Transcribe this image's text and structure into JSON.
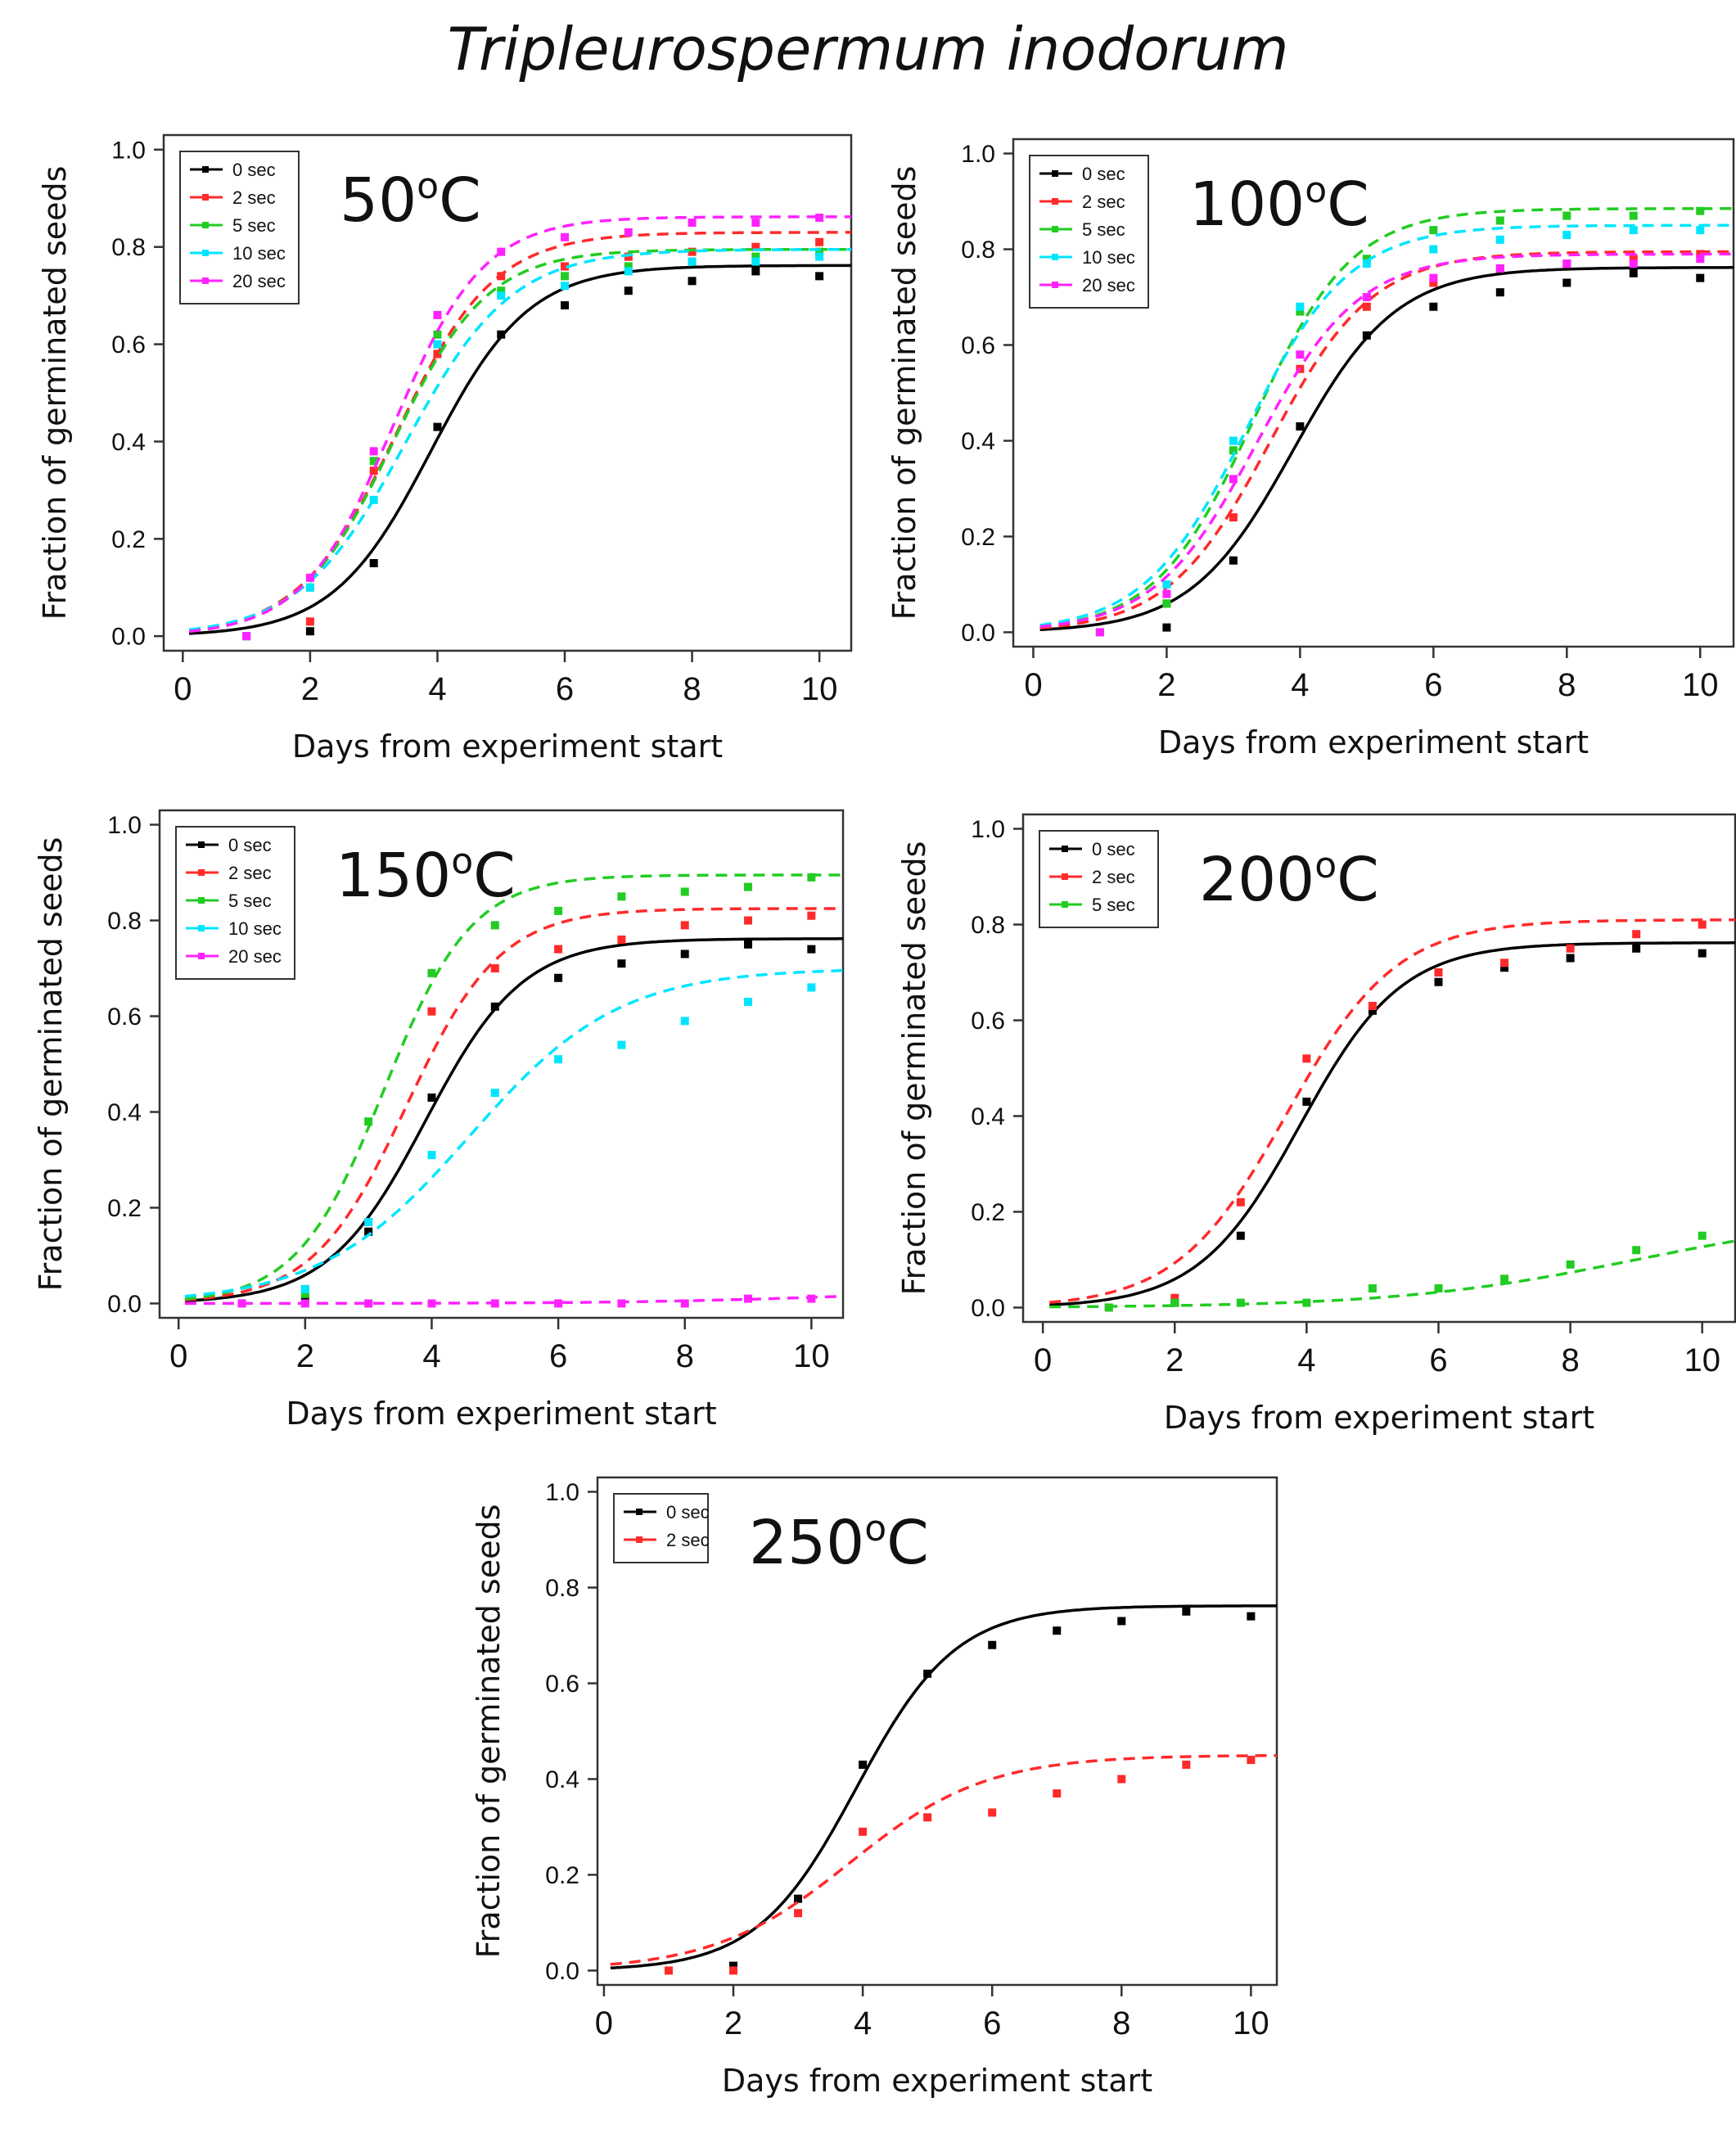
{
  "figure_title": "Tripleurospermum inodorum",
  "colors": {
    "0 sec": "#000000",
    "2 sec": "#ff2a2a",
    "5 sec": "#22cc22",
    "10 sec": "#00e5ff",
    "20 sec": "#ff22ff"
  },
  "chart_data": [
    {
      "type": "line",
      "temperature": "50",
      "unit": "oC",
      "xlabel": "Days from experiment start",
      "ylabel": "Fraction of germinated seeds",
      "xlim": [
        -0.3,
        10.5
      ],
      "ylim": [
        -0.03,
        1.03
      ],
      "xticks": [
        "0",
        "2",
        "4",
        "6",
        "8",
        "10"
      ],
      "yticks": [
        "0.0",
        "0.2",
        "0.4",
        "0.6",
        "0.8",
        "1.0"
      ],
      "legend": [
        "0 sec",
        "2 sec",
        "5 sec",
        "10 sec",
        "20 sec"
      ],
      "series": [
        {
          "name": "0 sec",
          "line": "solid",
          "fit": {
            "A": 0.762,
            "k": 1.3,
            "x0": 3.9
          },
          "x": [
            2,
            3,
            4,
            5,
            6,
            7,
            8,
            9,
            10
          ],
          "y": [
            0.01,
            0.15,
            0.43,
            0.62,
            0.68,
            0.71,
            0.73,
            0.75,
            0.74
          ]
        },
        {
          "name": "2 sec",
          "line": "dashed",
          "fit": {
            "A": 0.83,
            "k": 1.3,
            "x0": 3.35
          },
          "x": [
            1,
            2,
            3,
            4,
            5,
            6,
            7,
            8,
            9,
            10
          ],
          "y": [
            0.0,
            0.03,
            0.34,
            0.58,
            0.74,
            0.76,
            0.78,
            0.79,
            0.8,
            0.81
          ]
        },
        {
          "name": "5 sec",
          "line": "dashed",
          "fit": {
            "A": 0.795,
            "k": 1.35,
            "x0": 3.3
          },
          "x": [
            1,
            2,
            3,
            4,
            5,
            6,
            7,
            8,
            9,
            10
          ],
          "y": [
            0.0,
            0.1,
            0.36,
            0.62,
            0.71,
            0.74,
            0.76,
            0.77,
            0.78,
            0.79
          ]
        },
        {
          "name": "10 sec",
          "line": "dashed",
          "fit": {
            "A": 0.795,
            "k": 1.2,
            "x0": 3.5
          },
          "x": [
            1,
            2,
            3,
            4,
            5,
            6,
            7,
            8,
            9,
            10
          ],
          "y": [
            0.0,
            0.1,
            0.28,
            0.6,
            0.7,
            0.72,
            0.75,
            0.77,
            0.77,
            0.78
          ]
        },
        {
          "name": "20 sec",
          "line": "dashed",
          "fit": {
            "A": 0.862,
            "k": 1.4,
            "x0": 3.3
          },
          "x": [
            1,
            2,
            3,
            4,
            5,
            6,
            7,
            8,
            9,
            10
          ],
          "y": [
            0.0,
            0.12,
            0.38,
            0.66,
            0.79,
            0.82,
            0.83,
            0.85,
            0.85,
            0.86
          ]
        }
      ]
    },
    {
      "type": "line",
      "temperature": "100",
      "unit": "oC",
      "xlabel": "Days from experiment start",
      "ylabel": "Fraction of germinated seeds",
      "xlim": [
        -0.3,
        10.5
      ],
      "ylim": [
        -0.03,
        1.03
      ],
      "xticks": [
        "0",
        "2",
        "4",
        "6",
        "8",
        "10"
      ],
      "yticks": [
        "0.0",
        "0.2",
        "0.4",
        "0.6",
        "0.8",
        "1.0"
      ],
      "legend": [
        "0 sec",
        "2 sec",
        "5 sec",
        "10 sec",
        "20 sec"
      ],
      "series": [
        {
          "name": "0 sec",
          "line": "solid",
          "fit": {
            "A": 0.762,
            "k": 1.3,
            "x0": 3.9
          },
          "x": [
            2,
            3,
            4,
            5,
            6,
            7,
            8,
            9,
            10
          ],
          "y": [
            0.01,
            0.15,
            0.43,
            0.62,
            0.68,
            0.71,
            0.73,
            0.75,
            0.74
          ]
        },
        {
          "name": "2 sec",
          "line": "dashed",
          "fit": {
            "A": 0.795,
            "k": 1.3,
            "x0": 3.55
          },
          "x": [
            1,
            2,
            3,
            4,
            5,
            6,
            7,
            8,
            9,
            10
          ],
          "y": [
            0.0,
            0.06,
            0.24,
            0.55,
            0.68,
            0.73,
            0.76,
            0.77,
            0.78,
            0.79
          ]
        },
        {
          "name": "5 sec",
          "line": "dashed",
          "fit": {
            "A": 0.885,
            "k": 1.35,
            "x0": 3.3
          },
          "x": [
            1,
            2,
            3,
            4,
            5,
            6,
            7,
            8,
            9,
            10
          ],
          "y": [
            0.0,
            0.06,
            0.38,
            0.67,
            0.78,
            0.84,
            0.86,
            0.87,
            0.87,
            0.88
          ]
        },
        {
          "name": "10 sec",
          "line": "dashed",
          "fit": {
            "A": 0.85,
            "k": 1.3,
            "x0": 3.2
          },
          "x": [
            1,
            2,
            3,
            4,
            5,
            6,
            7,
            8,
            9,
            10
          ],
          "y": [
            0.0,
            0.1,
            0.4,
            0.68,
            0.77,
            0.8,
            0.82,
            0.83,
            0.84,
            0.84
          ]
        },
        {
          "name": "20 sec",
          "line": "dashed",
          "fit": {
            "A": 0.79,
            "k": 1.3,
            "x0": 3.35
          },
          "x": [
            1,
            2,
            3,
            4,
            5,
            6,
            7,
            8,
            9,
            10
          ],
          "y": [
            0.0,
            0.08,
            0.32,
            0.58,
            0.7,
            0.74,
            0.76,
            0.77,
            0.77,
            0.78
          ]
        }
      ]
    },
    {
      "type": "line",
      "temperature": "150",
      "unit": "oC",
      "xlabel": "Days from experiment start",
      "ylabel": "Fraction of germinated seeds",
      "xlim": [
        -0.3,
        10.5
      ],
      "ylim": [
        -0.03,
        1.03
      ],
      "xticks": [
        "0",
        "2",
        "4",
        "6",
        "8",
        "10"
      ],
      "yticks": [
        "0.0",
        "0.2",
        "0.4",
        "0.6",
        "0.8",
        "1.0"
      ],
      "legend": [
        "0 sec",
        "2 sec",
        "5 sec",
        "10 sec",
        "20 sec"
      ],
      "series": [
        {
          "name": "0 sec",
          "line": "solid",
          "fit": {
            "A": 0.762,
            "k": 1.3,
            "x0": 3.9
          },
          "x": [
            2,
            3,
            4,
            5,
            6,
            7,
            8,
            9,
            10
          ],
          "y": [
            0.01,
            0.15,
            0.43,
            0.62,
            0.68,
            0.71,
            0.73,
            0.75,
            0.74
          ]
        },
        {
          "name": "2 sec",
          "line": "dashed",
          "fit": {
            "A": 0.825,
            "k": 1.35,
            "x0": 3.6
          },
          "x": [
            1,
            2,
            3,
            4,
            5,
            6,
            7,
            8,
            9,
            10
          ],
          "y": [
            0.0,
            0.03,
            0.17,
            0.61,
            0.7,
            0.74,
            0.76,
            0.79,
            0.8,
            0.81
          ]
        },
        {
          "name": "5 sec",
          "line": "dashed",
          "fit": {
            "A": 0.895,
            "k": 1.45,
            "x0": 3.25
          },
          "x": [
            1,
            2,
            3,
            4,
            5,
            6,
            7,
            8,
            9,
            10
          ],
          "y": [
            0.0,
            0.02,
            0.38,
            0.69,
            0.79,
            0.82,
            0.85,
            0.86,
            0.87,
            0.89
          ]
        },
        {
          "name": "10 sec",
          "line": "dashed",
          "fit": {
            "A": 0.7,
            "k": 0.85,
            "x0": 4.6
          },
          "x": [
            1,
            2,
            3,
            4,
            5,
            6,
            7,
            8,
            9,
            10
          ],
          "y": [
            0.0,
            0.03,
            0.17,
            0.31,
            0.44,
            0.51,
            0.54,
            0.59,
            0.63,
            0.66
          ]
        },
        {
          "name": "20 sec",
          "line": "dashed",
          "fit": {
            "A": 0.03,
            "k": 0.6,
            "x0": 10.5
          },
          "x": [
            1,
            2,
            3,
            4,
            5,
            6,
            7,
            8,
            9,
            10
          ],
          "y": [
            0.0,
            0.0,
            0.0,
            0.0,
            0.0,
            0.0,
            0.0,
            0.0,
            0.01,
            0.01
          ]
        }
      ]
    },
    {
      "type": "line",
      "temperature": "200",
      "unit": "oC",
      "xlabel": "Days from experiment start",
      "ylabel": "Fraction of germinated seeds",
      "xlim": [
        -0.3,
        10.5
      ],
      "ylim": [
        -0.03,
        1.03
      ],
      "xticks": [
        "0",
        "2",
        "4",
        "6",
        "8",
        "10"
      ],
      "yticks": [
        "0.0",
        "0.2",
        "0.4",
        "0.6",
        "0.8",
        "1.0"
      ],
      "legend": [
        "0 sec",
        "2 sec",
        "5 sec"
      ],
      "series": [
        {
          "name": "0 sec",
          "line": "solid",
          "fit": {
            "A": 0.762,
            "k": 1.3,
            "x0": 3.9
          },
          "x": [
            2,
            3,
            4,
            5,
            6,
            7,
            8,
            9,
            10
          ],
          "y": [
            0.01,
            0.15,
            0.43,
            0.62,
            0.68,
            0.71,
            0.73,
            0.75,
            0.74
          ]
        },
        {
          "name": "2 sec",
          "line": "dashed",
          "fit": {
            "A": 0.81,
            "k": 1.2,
            "x0": 3.7
          },
          "x": [
            1,
            2,
            3,
            4,
            5,
            6,
            7,
            8,
            9,
            10
          ],
          "y": [
            0.0,
            0.02,
            0.22,
            0.52,
            0.63,
            0.7,
            0.72,
            0.75,
            0.78,
            0.8
          ]
        },
        {
          "name": "5 sec",
          "line": "dashed",
          "fit": {
            "A": 0.2,
            "k": 0.55,
            "x0": 9.0
          },
          "x": [
            1,
            2,
            3,
            4,
            5,
            6,
            7,
            8,
            9,
            10
          ],
          "y": [
            0.0,
            0.01,
            0.01,
            0.01,
            0.04,
            0.04,
            0.06,
            0.09,
            0.12,
            0.15
          ]
        }
      ]
    },
    {
      "type": "line",
      "temperature": "250",
      "unit": "oC",
      "xlabel": "Days from experiment start",
      "ylabel": "Fraction of germinated seeds",
      "xlim": [
        -0.1,
        10.4
      ],
      "ylim": [
        -0.03,
        1.03
      ],
      "xticks": [
        "0",
        "2",
        "4",
        "6",
        "8",
        "10"
      ],
      "yticks": [
        "0.0",
        "0.2",
        "0.4",
        "0.6",
        "0.8",
        "1.0"
      ],
      "legend": [
        "0 sec",
        "2 sec"
      ],
      "series": [
        {
          "name": "0 sec",
          "line": "solid",
          "fit": {
            "A": 0.762,
            "k": 1.3,
            "x0": 3.9
          },
          "x": [
            2,
            3,
            4,
            5,
            6,
            7,
            8,
            9,
            10
          ],
          "y": [
            0.01,
            0.15,
            0.43,
            0.62,
            0.68,
            0.71,
            0.73,
            0.75,
            0.74
          ]
        },
        {
          "name": "2 sec",
          "line": "dashed",
          "fit": {
            "A": 0.45,
            "k": 0.95,
            "x0": 3.8
          },
          "x": [
            1,
            2,
            3,
            4,
            5,
            6,
            7,
            8,
            9,
            10
          ],
          "y": [
            0.0,
            0.0,
            0.12,
            0.29,
            0.32,
            0.33,
            0.37,
            0.4,
            0.43,
            0.44
          ]
        }
      ]
    }
  ]
}
